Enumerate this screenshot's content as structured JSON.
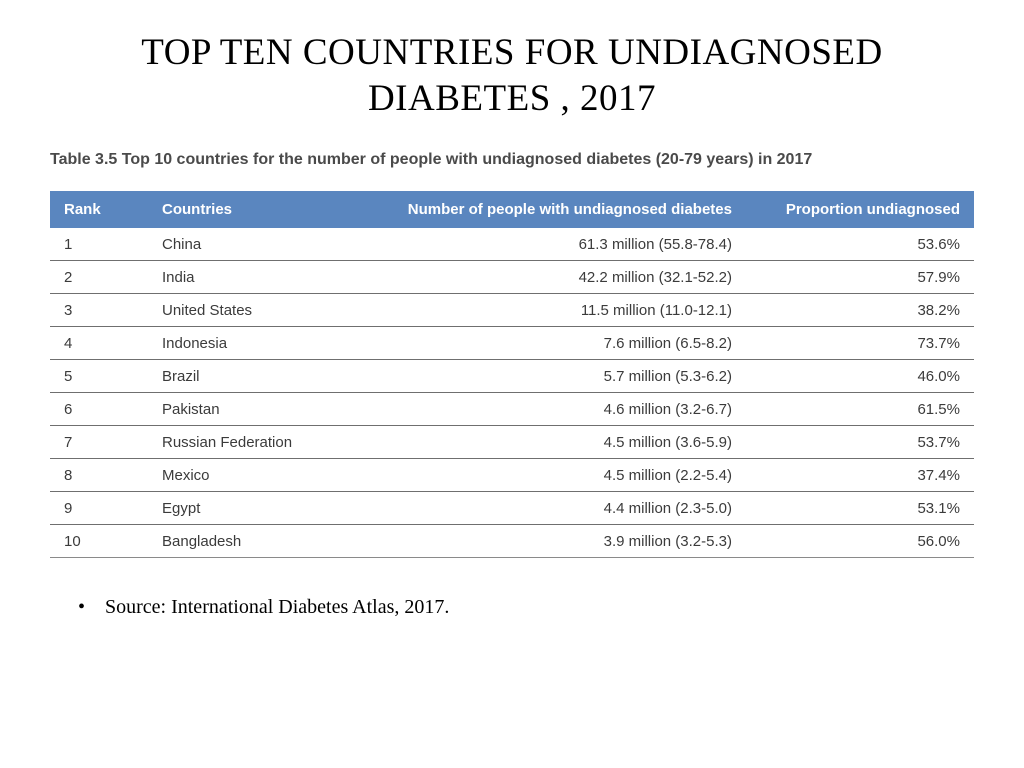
{
  "title": "TOP TEN COUNTRIES FOR UNDIAGNOSED DIABETES ,  2017",
  "table": {
    "caption": "Table 3.5 Top 10 countries for the number of people with undiagnosed diabetes (20-79 years) in 2017",
    "header_bg": "#5a86bf",
    "header_fg": "#ffffff",
    "row_border": "#6f6f6f",
    "columns": {
      "rank": "Rank",
      "country": "Countries",
      "count": "Number of people with undiagnosed diabetes",
      "prop": "Proportion undiagnosed"
    },
    "rows": [
      {
        "rank": "1",
        "country": "China",
        "count": "61.3 million (55.8-78.4)",
        "prop": "53.6%"
      },
      {
        "rank": "2",
        "country": "India",
        "count": "42.2 million (32.1-52.2)",
        "prop": "57.9%"
      },
      {
        "rank": "3",
        "country": "United States",
        "count": "11.5 million (11.0-12.1)",
        "prop": "38.2%"
      },
      {
        "rank": "4",
        "country": "Indonesia",
        "count": "7.6 million (6.5-8.2)",
        "prop": "73.7%"
      },
      {
        "rank": "5",
        "country": "Brazil",
        "count": "5.7 million (5.3-6.2)",
        "prop": "46.0%"
      },
      {
        "rank": "6",
        "country": "Pakistan",
        "count": "4.6 million (3.2-6.7)",
        "prop": "61.5%"
      },
      {
        "rank": "7",
        "country": "Russian Federation",
        "count": "4.5 million (3.6-5.9)",
        "prop": "53.7%"
      },
      {
        "rank": "8",
        "country": "Mexico",
        "count": "4.5 million (2.2-5.4)",
        "prop": "37.4%"
      },
      {
        "rank": "9",
        "country": "Egypt",
        "count": "4.4 million (2.3-5.0)",
        "prop": "53.1%"
      },
      {
        "rank": "10",
        "country": "Bangladesh",
        "count": "3.9 million (3.2-5.3)",
        "prop": "56.0%"
      }
    ]
  },
  "source": "Source: International Diabetes Atlas, 2017."
}
